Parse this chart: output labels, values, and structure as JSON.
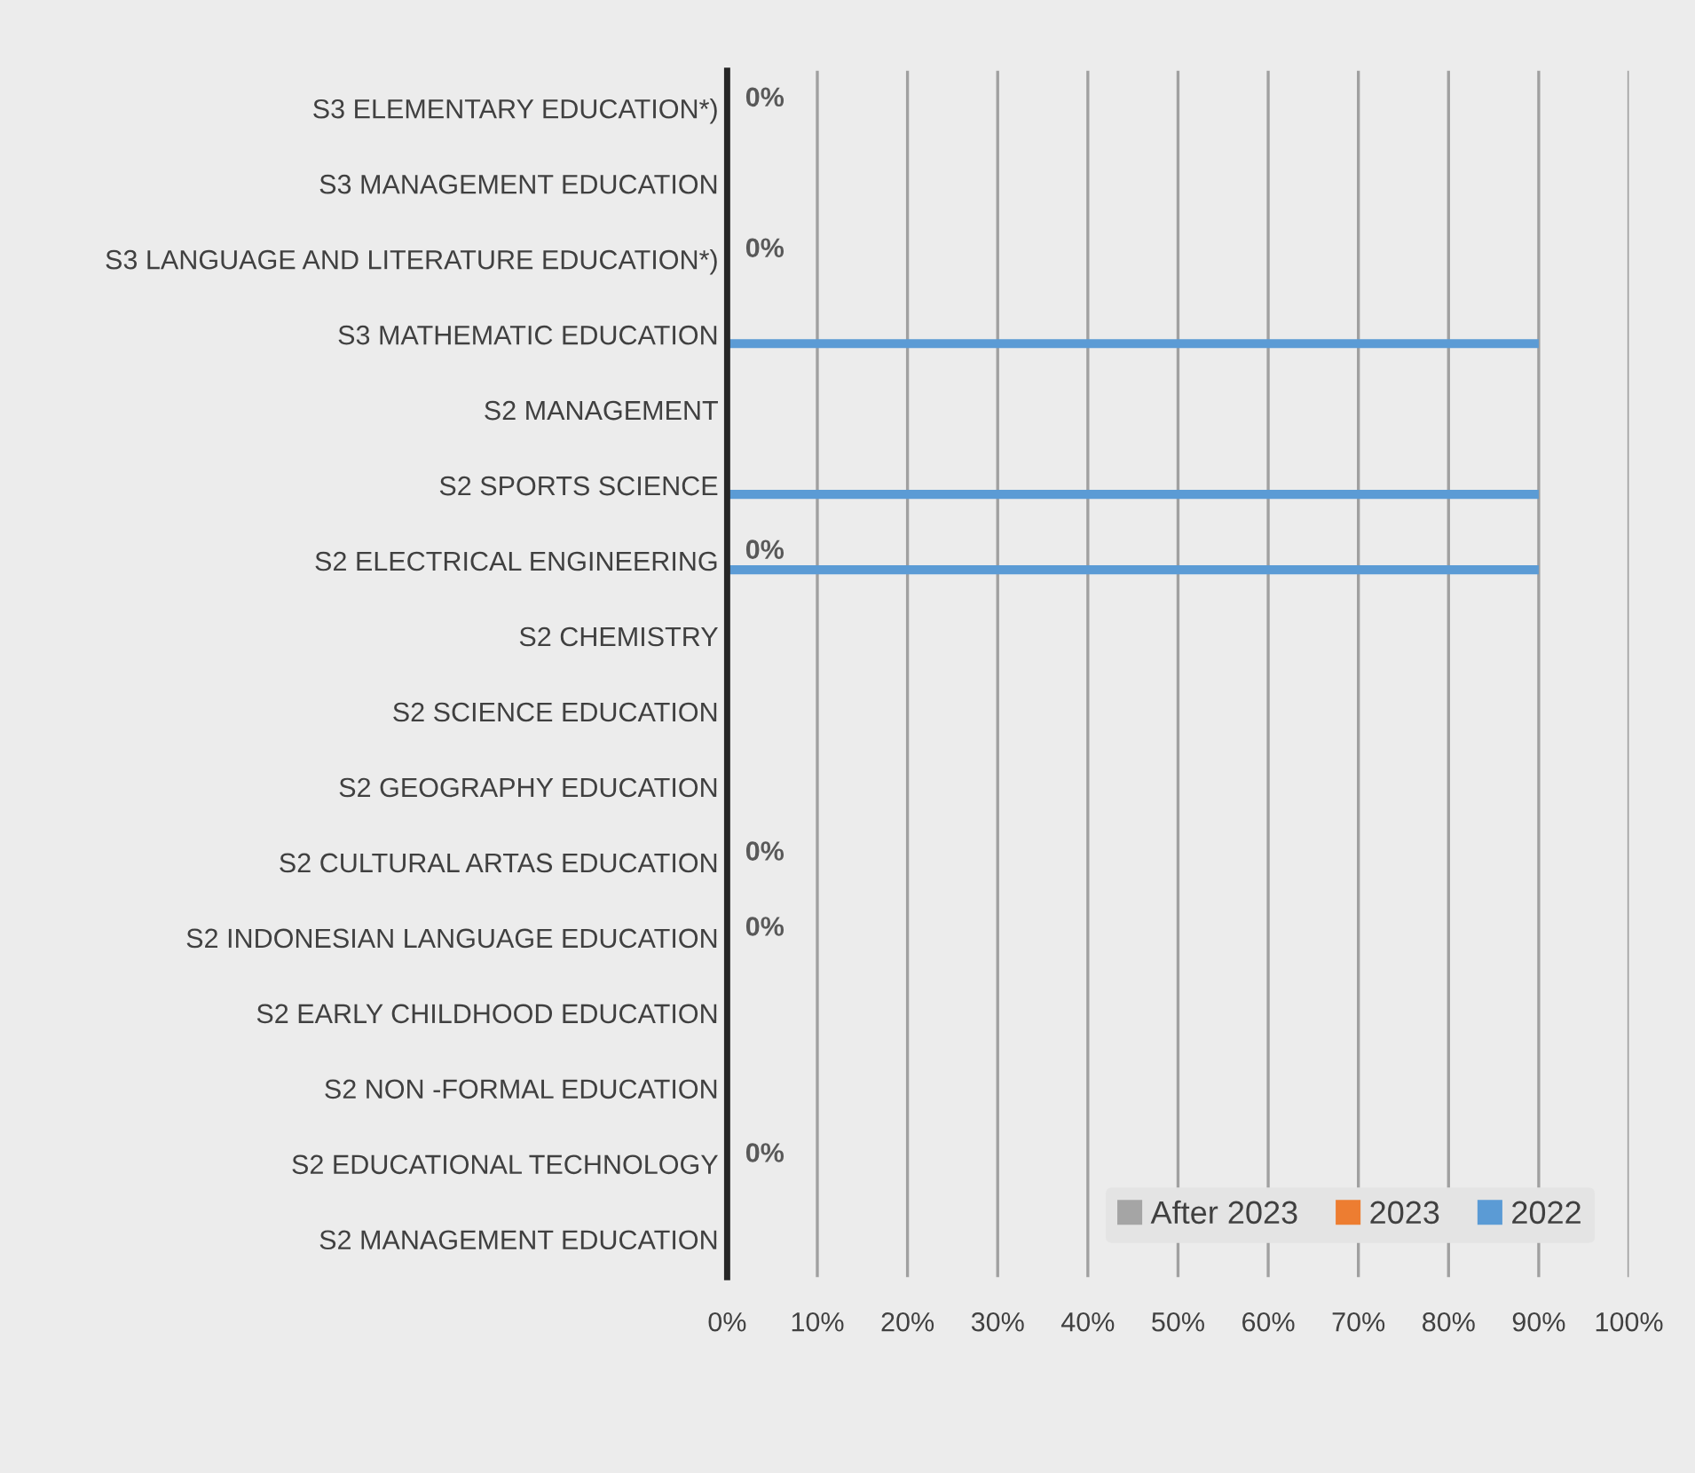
{
  "chart_data": {
    "type": "bar",
    "orientation": "horizontal",
    "categories": [
      "S3 ELEMENTARY EDUCATION*)",
      "S3 MANAGEMENT EDUCATION",
      "S3 LANGUAGE AND LITERATURE EDUCATION*)",
      "S3 MATHEMATIC EDUCATION",
      "S2 MANAGEMENT",
      "S2 SPORTS SCIENCE",
      "S2 ELECTRICAL ENGINEERING",
      "S2 CHEMISTRY",
      "S2 SCIENCE EDUCATION",
      "S2 GEOGRAPHY EDUCATION",
      "S2 CULTURAL ARTAS EDUCATION",
      "S2 INDONESIAN LANGUAGE EDUCATION",
      "S2 EARLY CHILDHOOD EDUCATION",
      "S2 NON -FORMAL EDUCATION",
      "S2 EDUCATIONAL TECHNOLOGY",
      "S2 MANAGEMENT EDUCATION"
    ],
    "series": [
      {
        "name": "After 2023",
        "color": "#a5a5a5",
        "values": [
          0,
          0,
          0,
          0,
          0,
          0,
          0,
          0,
          0,
          0,
          0,
          0,
          0,
          0,
          0,
          0
        ],
        "value_labels": [
          "0%",
          null,
          "0%",
          null,
          null,
          null,
          "0%",
          null,
          null,
          null,
          "0%",
          "0%",
          null,
          null,
          "0%",
          null
        ]
      },
      {
        "name": "2023",
        "color": "#ed7d31",
        "values": [
          0,
          0,
          0,
          0,
          0,
          0,
          0,
          0,
          0,
          0,
          0,
          0,
          0,
          0,
          0,
          0
        ]
      },
      {
        "name": "2022",
        "color": "#5b9bd5",
        "values": [
          0,
          0,
          0,
          90,
          0,
          90,
          90,
          0,
          0,
          0,
          0,
          0,
          0,
          0,
          0,
          0
        ]
      }
    ],
    "xlim": [
      0,
      100
    ],
    "xticks": [
      {
        "value": 0,
        "label": "0%"
      },
      {
        "value": 10,
        "label": "10%"
      },
      {
        "value": 20,
        "label": "20%"
      },
      {
        "value": 30,
        "label": "30%"
      },
      {
        "value": 40,
        "label": "40%"
      },
      {
        "value": 50,
        "label": "50%"
      },
      {
        "value": 60,
        "label": "60%"
      },
      {
        "value": 70,
        "label": "70%"
      },
      {
        "value": 80,
        "label": "80%"
      },
      {
        "value": 90,
        "label": "90%"
      },
      {
        "value": 100,
        "label": "100%"
      }
    ],
    "grid": "x",
    "legend": "bottom right"
  }
}
